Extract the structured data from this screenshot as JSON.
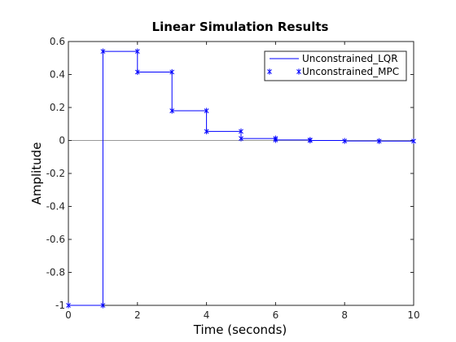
{
  "chart_data": {
    "type": "line",
    "title": "Linear Simulation Results",
    "xlabel": "Time (seconds)",
    "ylabel": "Amplitude",
    "xlim": [
      0,
      10
    ],
    "ylim": [
      -1,
      0.6
    ],
    "xticks": [
      0,
      2,
      4,
      6,
      8,
      10
    ],
    "yticks": [
      0.6,
      0.4,
      0.2,
      0,
      -0.2,
      -0.4,
      -0.6,
      -0.8,
      -1
    ],
    "grid": false,
    "zero_line": true,
    "legend_position": "top-right",
    "series": [
      {
        "name": "Unconstrained_LQR",
        "style": "stairs",
        "color": "#0000ff",
        "x": [
          0,
          1,
          2,
          3,
          4,
          5,
          6,
          7,
          8,
          9,
          10
        ],
        "y": [
          -1,
          0.54,
          0.415,
          0.18,
          0.055,
          0.012,
          0.003,
          0.0,
          -0.003,
          -0.004,
          -0.004
        ]
      },
      {
        "name": "Unconstrained_MPC",
        "style": "markers",
        "marker": "asterisk",
        "color": "#0000ff",
        "x": [
          0,
          1,
          1,
          2,
          2,
          3,
          3,
          4,
          4,
          5,
          5,
          6,
          6,
          7,
          7,
          8,
          9,
          10
        ],
        "y": [
          -1,
          -1,
          0.54,
          0.54,
          0.415,
          0.415,
          0.18,
          0.18,
          0.055,
          0.055,
          0.012,
          0.012,
          0.003,
          0.003,
          0.0,
          -0.003,
          -0.004,
          -0.004
        ]
      }
    ]
  }
}
